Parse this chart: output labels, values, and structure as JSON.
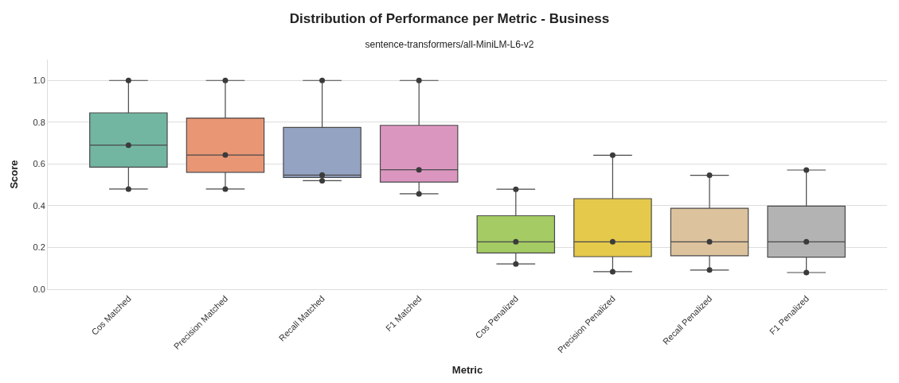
{
  "chart_data": {
    "type": "box",
    "title": "Distribution of Performance per Metric - Business",
    "subtitle": "sentence-transformers/all-MiniLM-L6-v2",
    "xlabel": "Metric",
    "ylabel": "Score",
    "categories": [
      "Cos Matched",
      "Precision Matched",
      "Recall Matched",
      "F1 Matched",
      "Cos Penalized",
      "Precision Penalized",
      "Recall Penalized",
      "F1 Penalized"
    ],
    "colors": [
      "#72b6a1",
      "#e99675",
      "#95a3c3",
      "#db96c0",
      "#a4cb64",
      "#e5c94b",
      "#dcc29d",
      "#b3b3b3"
    ],
    "boxes": [
      {
        "low": 0.48,
        "q1": 0.585,
        "median": 0.69,
        "q3": 0.845,
        "high": 1.0
      },
      {
        "low": 0.48,
        "q1": 0.56,
        "median": 0.643,
        "q3": 0.82,
        "high": 1.0
      },
      {
        "low": 0.52,
        "q1": 0.535,
        "median": 0.547,
        "q3": 0.775,
        "high": 1.0
      },
      {
        "low": 0.457,
        "q1": 0.513,
        "median": 0.572,
        "q3": 0.785,
        "high": 1.0
      },
      {
        "low": 0.121,
        "q1": 0.174,
        "median": 0.227,
        "q3": 0.352,
        "high": 0.479
      },
      {
        "low": 0.084,
        "q1": 0.156,
        "median": 0.227,
        "q3": 0.434,
        "high": 0.642
      },
      {
        "low": 0.092,
        "q1": 0.16,
        "median": 0.227,
        "q3": 0.388,
        "high": 0.546
      },
      {
        "low": 0.08,
        "q1": 0.154,
        "median": 0.227,
        "q3": 0.398,
        "high": 0.571
      }
    ],
    "series": [
      {
        "type": "scatter",
        "color": "#3b3b3b",
        "x": [
          "Cos Matched",
          "Cos Matched",
          "Cos Matched",
          "Precision Matched",
          "Precision Matched",
          "Precision Matched",
          "Recall Matched",
          "Recall Matched",
          "Recall Matched",
          "F1 Matched",
          "F1 Matched",
          "F1 Matched",
          "Cos Penalized",
          "Cos Penalized",
          "Cos Penalized",
          "Precision Penalized",
          "Precision Penalized",
          "Precision Penalized",
          "Recall Penalized",
          "Recall Penalized",
          "Recall Penalized",
          "F1 Penalized",
          "F1 Penalized",
          "F1 Penalized"
        ],
        "values": [
          0.48,
          0.69,
          1.0,
          0.48,
          0.643,
          1.0,
          0.52,
          0.547,
          1.0,
          0.457,
          0.572,
          1.0,
          0.121,
          0.227,
          0.479,
          0.084,
          0.227,
          0.642,
          0.092,
          0.227,
          0.546,
          0.08,
          0.227,
          0.571
        ]
      }
    ],
    "ylim": [
      0,
      1.1
    ],
    "yticks": [
      {
        "value": 0,
        "label": "0.0"
      },
      0.2,
      0.4,
      0.6,
      0.8,
      {
        "value": 1,
        "label": "1.0"
      }
    ],
    "grid": "y",
    "marker": "circle"
  }
}
